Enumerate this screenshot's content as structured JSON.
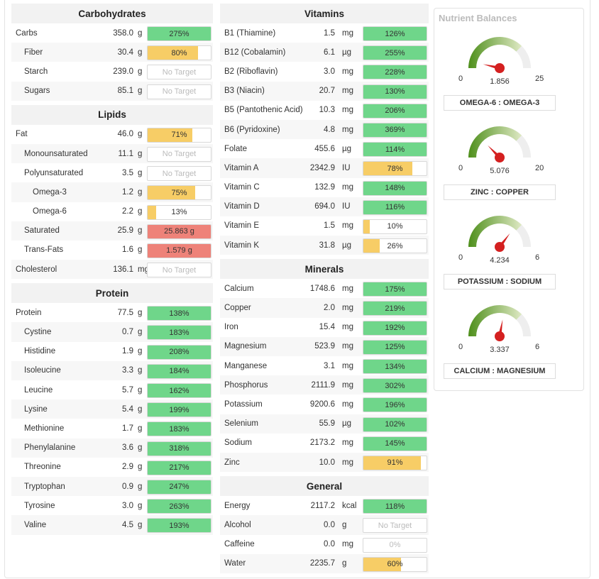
{
  "colors": {
    "green": "#6fd68a",
    "yellow": "#f7cd66",
    "red": "#ee8279",
    "none": "#ffffff"
  },
  "carbohydrates": {
    "title": "Carbohydrates",
    "rows": [
      {
        "name": "Carbs",
        "amount": "358.0",
        "unit": "g",
        "target": "275%",
        "fill": 100,
        "color": "green",
        "indent": 0
      },
      {
        "name": "Fiber",
        "amount": "30.4",
        "unit": "g",
        "target": "80%",
        "fill": 80,
        "color": "yellow",
        "indent": 1
      },
      {
        "name": "Starch",
        "amount": "239.0",
        "unit": "g",
        "target": "No Target",
        "fill": 0,
        "color": "none",
        "indent": 1
      },
      {
        "name": "Sugars",
        "amount": "85.1",
        "unit": "g",
        "target": "No Target",
        "fill": 0,
        "color": "none",
        "indent": 1
      }
    ]
  },
  "lipids": {
    "title": "Lipids",
    "rows": [
      {
        "name": "Fat",
        "amount": "46.0",
        "unit": "g",
        "target": "71%",
        "fill": 71,
        "color": "yellow",
        "indent": 0
      },
      {
        "name": "Monounsaturated",
        "amount": "11.1",
        "unit": "g",
        "target": "No Target",
        "fill": 0,
        "color": "none",
        "indent": 1
      },
      {
        "name": "Polyunsaturated",
        "amount": "3.5",
        "unit": "g",
        "target": "No Target",
        "fill": 0,
        "color": "none",
        "indent": 1
      },
      {
        "name": "Omega-3",
        "amount": "1.2",
        "unit": "g",
        "target": "75%",
        "fill": 75,
        "color": "yellow",
        "indent": 2
      },
      {
        "name": "Omega-6",
        "amount": "2.2",
        "unit": "g",
        "target": "13%",
        "fill": 13,
        "color": "yellow",
        "indent": 2
      },
      {
        "name": "Saturated",
        "amount": "25.9",
        "unit": "g",
        "target": "25.863 g",
        "fill": 100,
        "color": "red",
        "indent": 1
      },
      {
        "name": "Trans-Fats",
        "amount": "1.6",
        "unit": "g",
        "target": "1.579 g",
        "fill": 100,
        "color": "red",
        "indent": 1
      },
      {
        "name": "Cholesterol",
        "amount": "136.1",
        "unit": "mg",
        "target": "No Target",
        "fill": 0,
        "color": "none",
        "indent": 0
      }
    ]
  },
  "protein": {
    "title": "Protein",
    "rows": [
      {
        "name": "Protein",
        "amount": "77.5",
        "unit": "g",
        "target": "138%",
        "fill": 100,
        "color": "green",
        "indent": 0
      },
      {
        "name": "Cystine",
        "amount": "0.7",
        "unit": "g",
        "target": "183%",
        "fill": 100,
        "color": "green",
        "indent": 1
      },
      {
        "name": "Histidine",
        "amount": "1.9",
        "unit": "g",
        "target": "208%",
        "fill": 100,
        "color": "green",
        "indent": 1
      },
      {
        "name": "Isoleucine",
        "amount": "3.3",
        "unit": "g",
        "target": "184%",
        "fill": 100,
        "color": "green",
        "indent": 1
      },
      {
        "name": "Leucine",
        "amount": "5.7",
        "unit": "g",
        "target": "162%",
        "fill": 100,
        "color": "green",
        "indent": 1
      },
      {
        "name": "Lysine",
        "amount": "5.4",
        "unit": "g",
        "target": "199%",
        "fill": 100,
        "color": "green",
        "indent": 1
      },
      {
        "name": "Methionine",
        "amount": "1.7",
        "unit": "g",
        "target": "183%",
        "fill": 100,
        "color": "green",
        "indent": 1
      },
      {
        "name": "Phenylalanine",
        "amount": "3.6",
        "unit": "g",
        "target": "318%",
        "fill": 100,
        "color": "green",
        "indent": 1
      },
      {
        "name": "Threonine",
        "amount": "2.9",
        "unit": "g",
        "target": "217%",
        "fill": 100,
        "color": "green",
        "indent": 1
      },
      {
        "name": "Tryptophan",
        "amount": "0.9",
        "unit": "g",
        "target": "247%",
        "fill": 100,
        "color": "green",
        "indent": 1
      },
      {
        "name": "Tyrosine",
        "amount": "3.0",
        "unit": "g",
        "target": "263%",
        "fill": 100,
        "color": "green",
        "indent": 1
      },
      {
        "name": "Valine",
        "amount": "4.5",
        "unit": "g",
        "target": "193%",
        "fill": 100,
        "color": "green",
        "indent": 1
      }
    ]
  },
  "vitamins": {
    "title": "Vitamins",
    "rows": [
      {
        "name": "B1 (Thiamine)",
        "amount": "1.5",
        "unit": "mg",
        "target": "126%",
        "fill": 100,
        "color": "green"
      },
      {
        "name": "B12 (Cobalamin)",
        "amount": "6.1",
        "unit": "µg",
        "target": "255%",
        "fill": 100,
        "color": "green"
      },
      {
        "name": "B2 (Riboflavin)",
        "amount": "3.0",
        "unit": "mg",
        "target": "228%",
        "fill": 100,
        "color": "green"
      },
      {
        "name": "B3 (Niacin)",
        "amount": "20.7",
        "unit": "mg",
        "target": "130%",
        "fill": 100,
        "color": "green"
      },
      {
        "name": "B5 (Pantothenic Acid)",
        "amount": "10.3",
        "unit": "mg",
        "target": "206%",
        "fill": 100,
        "color": "green"
      },
      {
        "name": "B6 (Pyridoxine)",
        "amount": "4.8",
        "unit": "mg",
        "target": "369%",
        "fill": 100,
        "color": "green"
      },
      {
        "name": "Folate",
        "amount": "455.6",
        "unit": "µg",
        "target": "114%",
        "fill": 100,
        "color": "green"
      },
      {
        "name": "Vitamin A",
        "amount": "2342.9",
        "unit": "IU",
        "target": "78%",
        "fill": 78,
        "color": "yellow"
      },
      {
        "name": "Vitamin C",
        "amount": "132.9",
        "unit": "mg",
        "target": "148%",
        "fill": 100,
        "color": "green"
      },
      {
        "name": "Vitamin D",
        "amount": "694.0",
        "unit": "IU",
        "target": "116%",
        "fill": 100,
        "color": "green"
      },
      {
        "name": "Vitamin E",
        "amount": "1.5",
        "unit": "mg",
        "target": "10%",
        "fill": 10,
        "color": "yellow"
      },
      {
        "name": "Vitamin K",
        "amount": "31.8",
        "unit": "µg",
        "target": "26%",
        "fill": 26,
        "color": "yellow"
      }
    ]
  },
  "minerals": {
    "title": "Minerals",
    "rows": [
      {
        "name": "Calcium",
        "amount": "1748.6",
        "unit": "mg",
        "target": "175%",
        "fill": 100,
        "color": "green"
      },
      {
        "name": "Copper",
        "amount": "2.0",
        "unit": "mg",
        "target": "219%",
        "fill": 100,
        "color": "green"
      },
      {
        "name": "Iron",
        "amount": "15.4",
        "unit": "mg",
        "target": "192%",
        "fill": 100,
        "color": "green"
      },
      {
        "name": "Magnesium",
        "amount": "523.9",
        "unit": "mg",
        "target": "125%",
        "fill": 100,
        "color": "green"
      },
      {
        "name": "Manganese",
        "amount": "3.1",
        "unit": "mg",
        "target": "134%",
        "fill": 100,
        "color": "green"
      },
      {
        "name": "Phosphorus",
        "amount": "2111.9",
        "unit": "mg",
        "target": "302%",
        "fill": 100,
        "color": "green"
      },
      {
        "name": "Potassium",
        "amount": "9200.6",
        "unit": "mg",
        "target": "196%",
        "fill": 100,
        "color": "green"
      },
      {
        "name": "Selenium",
        "amount": "55.9",
        "unit": "µg",
        "target": "102%",
        "fill": 100,
        "color": "green"
      },
      {
        "name": "Sodium",
        "amount": "2173.2",
        "unit": "mg",
        "target": "145%",
        "fill": 100,
        "color": "green"
      },
      {
        "name": "Zinc",
        "amount": "10.0",
        "unit": "mg",
        "target": "91%",
        "fill": 91,
        "color": "yellow"
      }
    ]
  },
  "general": {
    "title": "General",
    "rows": [
      {
        "name": "Energy",
        "amount": "2117.2",
        "unit": "kcal",
        "target": "118%",
        "fill": 100,
        "color": "green"
      },
      {
        "name": "Alcohol",
        "amount": "0.0",
        "unit": "g",
        "target": "No Target",
        "fill": 0,
        "color": "none"
      },
      {
        "name": "Caffeine",
        "amount": "0.0",
        "unit": "mg",
        "target": "0%",
        "fill": 0,
        "color": "none"
      },
      {
        "name": "Water",
        "amount": "2235.7",
        "unit": "g",
        "target": "60%",
        "fill": 60,
        "color": "yellow"
      }
    ]
  },
  "balances": {
    "title": "Nutrient Balances",
    "gauges": [
      {
        "label": "OMEGA-6 : OMEGA-3",
        "value": "1.856",
        "num": 1.856,
        "min": "0",
        "max": "25",
        "min_num": 0,
        "max_num": 25
      },
      {
        "label": "ZINC : COPPER",
        "value": "5.076",
        "num": 5.076,
        "min": "0",
        "max": "20",
        "min_num": 0,
        "max_num": 20
      },
      {
        "label": "POTASSIUM : SODIUM",
        "value": "4.234",
        "num": 4.234,
        "min": "0",
        "max": "6",
        "min_num": 0,
        "max_num": 6
      },
      {
        "label": "CALCIUM : MAGNESIUM",
        "value": "3.337",
        "num": 3.337,
        "min": "0",
        "max": "6",
        "min_num": 0,
        "max_num": 6
      }
    ]
  }
}
